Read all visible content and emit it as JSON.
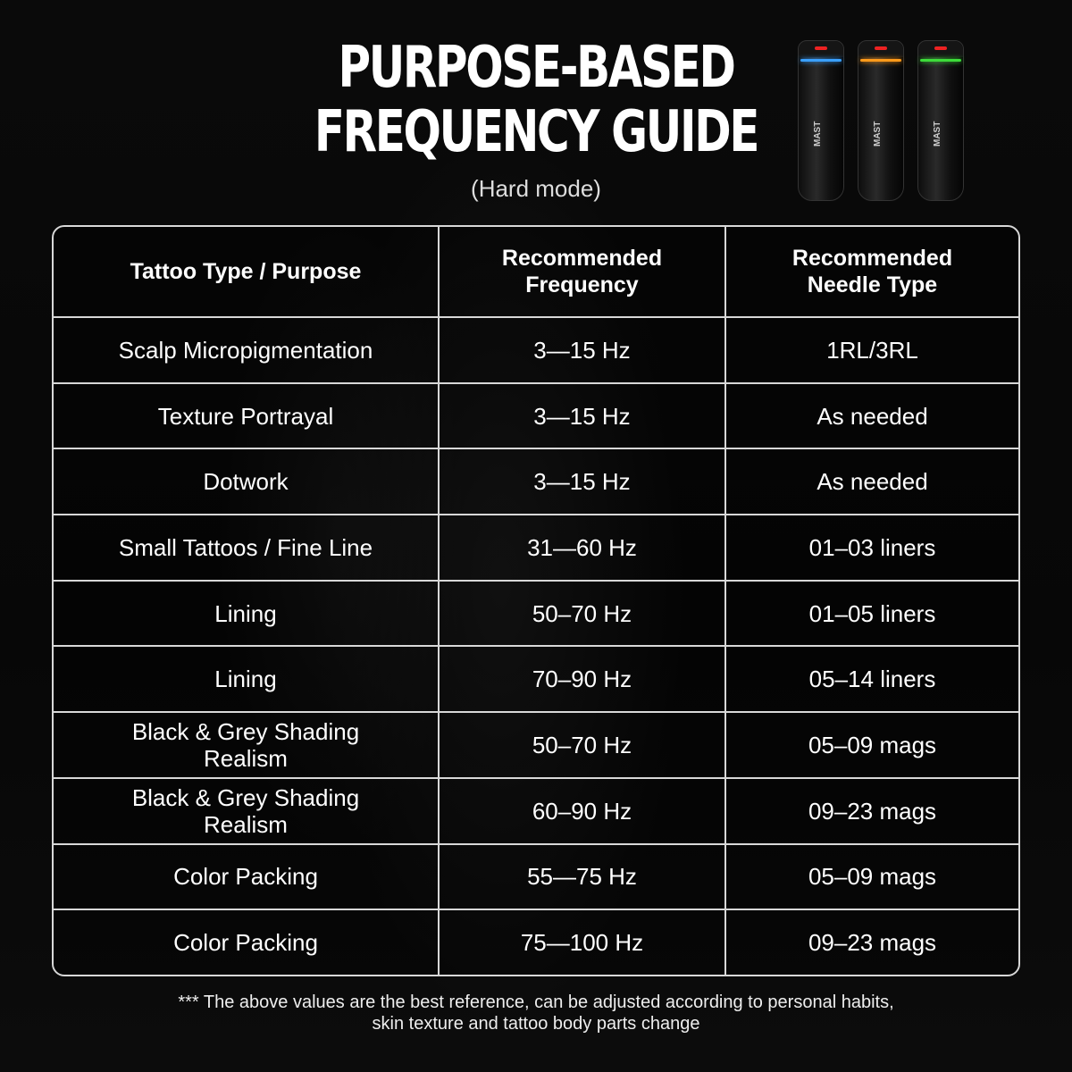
{
  "header": {
    "title_line1": "PURPOSE-BASED",
    "title_line2": "FREQUENCY GUIDE",
    "subtitle": "(Hard mode)"
  },
  "product": {
    "brand": "MAST",
    "ring_colors": [
      "#3aa0ff",
      "#ff9a1a",
      "#3ddc3a"
    ]
  },
  "table": {
    "columns": [
      "Tattoo Type / Purpose",
      "Recommended Frequency",
      "Recommended Needle Type"
    ],
    "rows": [
      {
        "type": [
          "Scalp Micropigmentation"
        ],
        "frequency": "3—15 Hz",
        "needle": "1RL/3RL"
      },
      {
        "type": [
          "Texture Portrayal"
        ],
        "frequency": "3—15 Hz",
        "needle": "As needed"
      },
      {
        "type": [
          "Dotwork"
        ],
        "frequency": "3—15 Hz",
        "needle": "As needed"
      },
      {
        "type": [
          "Small Tattoos / Fine Line"
        ],
        "frequency": "31—60 Hz",
        "needle": "01–03 liners"
      },
      {
        "type": [
          "Lining"
        ],
        "frequency": "50–70 Hz",
        "needle": "01–05 liners"
      },
      {
        "type": [
          "Lining"
        ],
        "frequency": "70–90 Hz",
        "needle": "05–14 liners"
      },
      {
        "type": [
          "Black & Grey Shading",
          "Realism"
        ],
        "frequency": "50–70 Hz",
        "needle": "05–09 mags"
      },
      {
        "type": [
          "Black & Grey Shading",
          "Realism"
        ],
        "frequency": "60–90 Hz",
        "needle": "09–23 mags"
      },
      {
        "type": [
          "Color Packing"
        ],
        "frequency": "55—75 Hz",
        "needle": "05–09 mags"
      },
      {
        "type": [
          "Color Packing"
        ],
        "frequency": "75—100 Hz",
        "needle": "09–23 mags"
      }
    ]
  },
  "footer": {
    "note_line1": "*** The above values are the best reference, can be adjusted according to personal habits,",
    "note_line2": "skin texture and tattoo body parts change"
  }
}
